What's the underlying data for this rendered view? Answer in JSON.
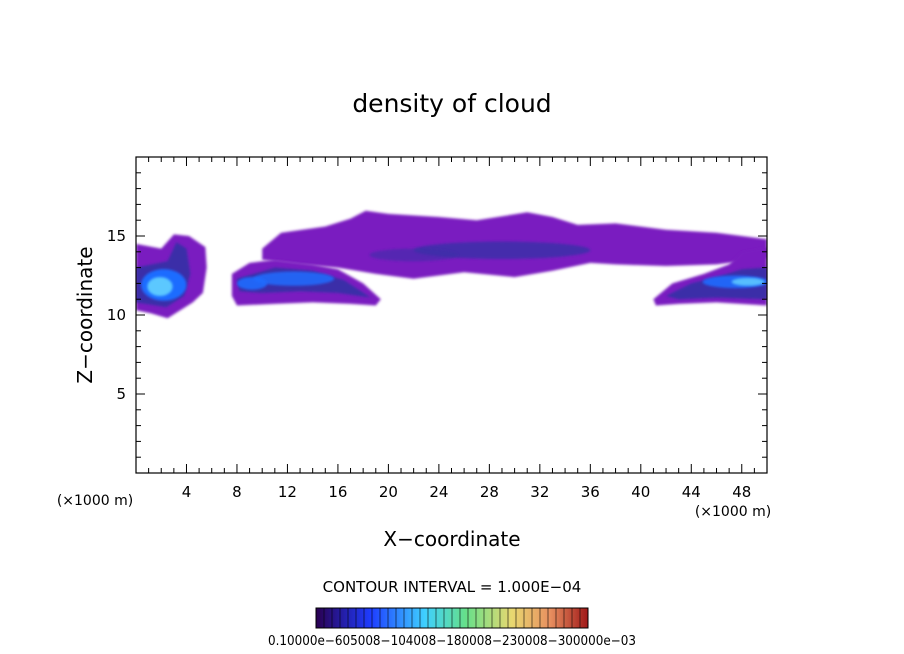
{
  "chart_data": {
    "type": "heatmap",
    "title": "density of cloud",
    "xlabel": "X−coordinate",
    "ylabel": "Z−coordinate",
    "x_unit_left": "(×1000 m)",
    "x_unit_right": "(×1000 m)",
    "xlim": [
      0,
      50
    ],
    "ylim": [
      0,
      20
    ],
    "x_ticks": [
      4,
      8,
      12,
      16,
      20,
      24,
      28,
      32,
      36,
      40,
      44,
      48
    ],
    "x_tick_labels": [
      "4",
      "8",
      "12",
      "16",
      "20",
      "24",
      "28",
      "32",
      "36",
      "40",
      "44",
      "48"
    ],
    "y_ticks": [
      5,
      10,
      15
    ],
    "y_tick_labels": [
      "5",
      "10",
      "15"
    ],
    "contour_interval_text": "CONTOUR INTERVAL = 1.000E−04",
    "colorbar_labels_text": "0.10000e−605008−104008−180008−230008−300000e−03",
    "colormap": [
      "#2a0050",
      "#3d1a9e",
      "#1e3cff",
      "#2a8cff",
      "#3fd0ff",
      "#66e08a",
      "#a8e86a",
      "#e8d870",
      "#e89060",
      "#d04040",
      "#a01818"
    ],
    "cloud_color_low": "#7a1fc0",
    "cloud_color_mid": "#3a2fa8",
    "cloud_color_high": "#1e6cff",
    "cloud_color_core": "#5cc8ff",
    "regions": [
      {
        "name": "left-cell",
        "x_range": [
          0,
          5.5
        ],
        "z_range": [
          9.8,
          15.0
        ],
        "max_level": "core"
      },
      {
        "name": "anvil-12km",
        "x_range": [
          7.6,
          19.4
        ],
        "z_range": [
          10.6,
          13.4
        ],
        "max_level": "high"
      },
      {
        "name": "upper-layer",
        "x_range": [
          10.0,
          50
        ],
        "z_range": [
          13.0,
          16.6
        ],
        "max_level": "mid"
      },
      {
        "name": "right-cell",
        "x_range": [
          41.0,
          50
        ],
        "z_range": [
          10.6,
          14.0
        ],
        "max_level": "core"
      }
    ]
  }
}
